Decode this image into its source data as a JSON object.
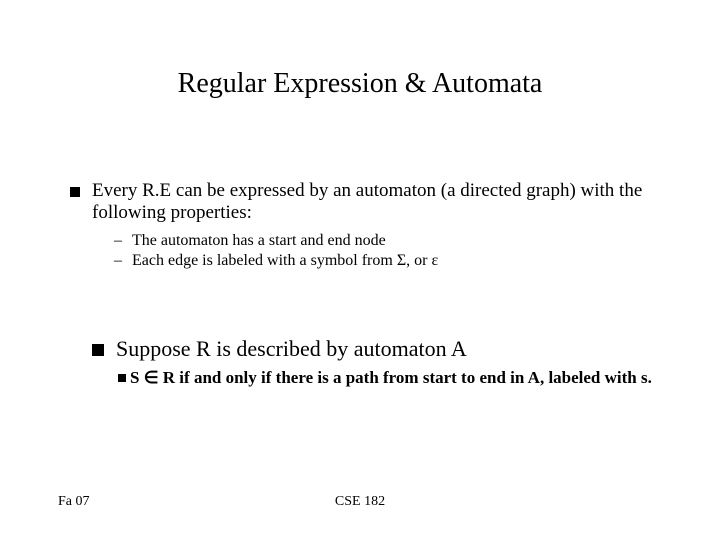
{
  "title": "Regular Expression & Automata",
  "main": {
    "bullet1": "Every R.E can be expressed by an automaton (a directed graph) with the following properties:",
    "sub1": "The automaton has a start and end node",
    "sub2_pre": "Each edge is labeled with a symbol from ",
    "sub2_sigma": "Σ",
    "sub2_mid": ", or ",
    "sub2_eps": "ε"
  },
  "block2": {
    "bullet1": "Suppose R is described by automaton A",
    "sub1_pre": "S ",
    "sub1_in": "∈",
    "sub1_post": " R if and only if there is a path from start to end in A, labeled with s."
  },
  "footer": {
    "left": "Fa 07",
    "center": "CSE 182"
  },
  "colors": {
    "bg": "#ffffff",
    "text": "#000000"
  },
  "fonts": {
    "title_size": 28,
    "body_size": 19,
    "sub_size": 16,
    "serif_size": 22,
    "serif_sub_size": 17,
    "footer_size": 14
  }
}
